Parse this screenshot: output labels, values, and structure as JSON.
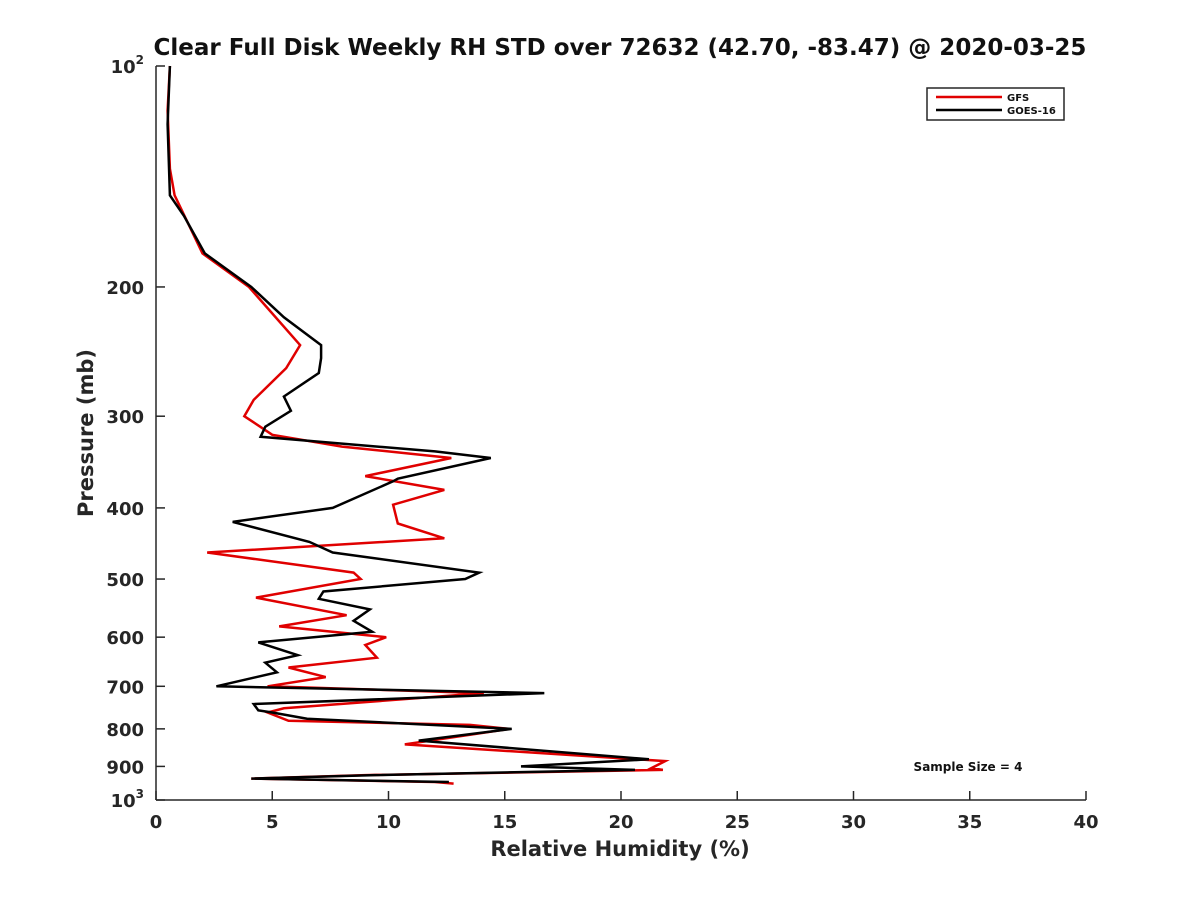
{
  "chart_data": {
    "type": "line",
    "title": "Clear Full Disk Weekly RH STD over 72632 (42.70, -83.47) @ 2020-03-25",
    "xlabel": "Relative Humidity (%)",
    "ylabel": "Pressure (mb)",
    "xlim": [
      0,
      40
    ],
    "ylim": [
      100,
      1000
    ],
    "y_scale": "log",
    "y_reversed": true,
    "x_ticks": [
      "0",
      "5",
      "10",
      "15",
      "20",
      "25",
      "30",
      "35",
      "40"
    ],
    "y_ticks": [
      {
        "value": 100,
        "base": "10",
        "exp": "2"
      },
      {
        "value": 200,
        "label": "200"
      },
      {
        "value": 300,
        "label": "300"
      },
      {
        "value": 400,
        "label": "400"
      },
      {
        "value": 500,
        "label": "500"
      },
      {
        "value": 600,
        "label": "600"
      },
      {
        "value": 700,
        "label": "700"
      },
      {
        "value": 800,
        "label": "800"
      },
      {
        "value": 900,
        "label": "900"
      },
      {
        "value": 1000,
        "base": "10",
        "exp": "3"
      }
    ],
    "legend_position": "top-right",
    "grid": false,
    "annotation": "Sample Size = 4",
    "series": [
      {
        "name": "GFS",
        "color": "#e00000",
        "points": [
          [
            0.6,
            100
          ],
          [
            0.5,
            115
          ],
          [
            0.6,
            138
          ],
          [
            0.8,
            150
          ],
          [
            2.0,
            180
          ],
          [
            4.0,
            200
          ],
          [
            6.2,
            240
          ],
          [
            5.6,
            258
          ],
          [
            4.2,
            285
          ],
          [
            3.8,
            300
          ],
          [
            5.0,
            318
          ],
          [
            8.0,
            330
          ],
          [
            12.7,
            342
          ],
          [
            9.0,
            362
          ],
          [
            12.4,
            378
          ],
          [
            10.2,
            396
          ],
          [
            10.4,
            420
          ],
          [
            12.4,
            440
          ],
          [
            2.2,
            460
          ],
          [
            8.5,
            490
          ],
          [
            8.8,
            500
          ],
          [
            4.3,
            530
          ],
          [
            8.2,
            560
          ],
          [
            5.3,
            580
          ],
          [
            9.9,
            600
          ],
          [
            9.0,
            615
          ],
          [
            9.5,
            640
          ],
          [
            5.7,
            660
          ],
          [
            7.3,
            680
          ],
          [
            4.8,
            700
          ],
          [
            14.1,
            715
          ],
          [
            5.5,
            750
          ],
          [
            4.8,
            760
          ],
          [
            5.7,
            780
          ],
          [
            13.5,
            790
          ],
          [
            15.2,
            800
          ],
          [
            10.7,
            840
          ],
          [
            21.9,
            885
          ],
          [
            21.3,
            905
          ],
          [
            21.8,
            910
          ],
          [
            9.0,
            925
          ],
          [
            4.1,
            935
          ],
          [
            12.0,
            945
          ],
          [
            12.8,
            950
          ]
        ]
      },
      {
        "name": "GOES-16",
        "color": "#000000",
        "points": [
          [
            0.6,
            100
          ],
          [
            0.5,
            120
          ],
          [
            0.6,
            150
          ],
          [
            1.2,
            160
          ],
          [
            2.1,
            180
          ],
          [
            4.1,
            200
          ],
          [
            5.5,
            220
          ],
          [
            7.1,
            240
          ],
          [
            7.1,
            250
          ],
          [
            7.0,
            262
          ],
          [
            5.5,
            282
          ],
          [
            5.8,
            295
          ],
          [
            4.7,
            310
          ],
          [
            4.5,
            320
          ],
          [
            12.0,
            335
          ],
          [
            14.4,
            342
          ],
          [
            10.4,
            365
          ],
          [
            10.2,
            368
          ],
          [
            7.6,
            400
          ],
          [
            3.3,
            418
          ],
          [
            6.6,
            445
          ],
          [
            7.6,
            460
          ],
          [
            13.9,
            490
          ],
          [
            13.3,
            500
          ],
          [
            7.2,
            520
          ],
          [
            7.0,
            532
          ],
          [
            9.2,
            550
          ],
          [
            8.5,
            570
          ],
          [
            9.3,
            590
          ],
          [
            4.4,
            610
          ],
          [
            6.1,
            635
          ],
          [
            4.7,
            650
          ],
          [
            5.2,
            670
          ],
          [
            2.6,
            700
          ],
          [
            16.7,
            715
          ],
          [
            4.2,
            740
          ],
          [
            4.4,
            755
          ],
          [
            5.0,
            760
          ],
          [
            6.5,
            775
          ],
          [
            15.3,
            800
          ],
          [
            11.3,
            830
          ],
          [
            21.2,
            880
          ],
          [
            15.7,
            900
          ],
          [
            20.6,
            910
          ],
          [
            9.4,
            925
          ],
          [
            4.1,
            935
          ],
          [
            12.6,
            945
          ]
        ]
      }
    ]
  }
}
